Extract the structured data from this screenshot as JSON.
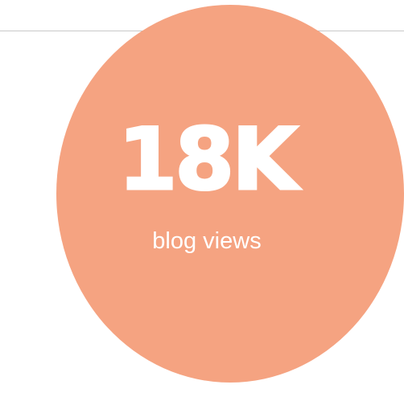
{
  "stat": {
    "value": "18K",
    "label": "blog views"
  },
  "colors": {
    "circle_fill": "#f5a381",
    "text": "#ffffff",
    "divider": "#c8c8c8",
    "background": "#ffffff"
  }
}
